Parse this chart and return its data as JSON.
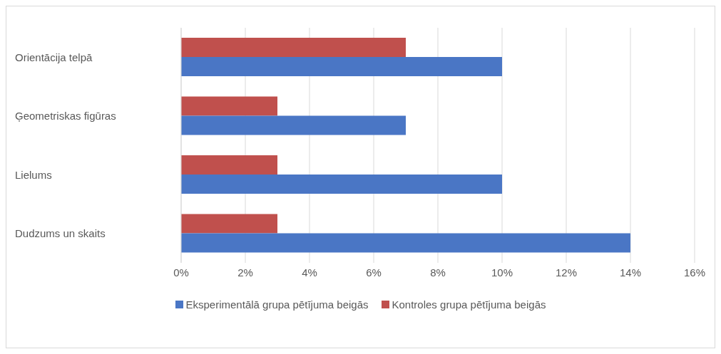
{
  "chart_data": {
    "type": "bar",
    "orientation": "horizontal",
    "categories": [
      "Orientācija telpā",
      "Ģeometriskas figūras",
      "Lielums",
      "Dudzums un skaits"
    ],
    "series": [
      {
        "name": "Eksperimentālā grupa pētījuma beigās",
        "color": "#4a76c5",
        "values": [
          10,
          7,
          10,
          14
        ]
      },
      {
        "name": "Kontroles grupa pētījuma beigās",
        "color": "#c0504d",
        "values": [
          7,
          3,
          3,
          3
        ]
      }
    ],
    "xlim": [
      0,
      16
    ],
    "xticks": [
      {
        "value": 0,
        "label": "0%"
      },
      {
        "value": 2,
        "label": "2%"
      },
      {
        "value": 4,
        "label": "4%"
      },
      {
        "value": 6,
        "label": "6%"
      },
      {
        "value": 8,
        "label": "8%"
      },
      {
        "value": 10,
        "label": "10%"
      },
      {
        "value": 12,
        "label": "12%"
      },
      {
        "value": 14,
        "label": "14%"
      },
      {
        "value": 16,
        "label": "16%"
      }
    ],
    "grid": "x",
    "legend": "bottom"
  }
}
